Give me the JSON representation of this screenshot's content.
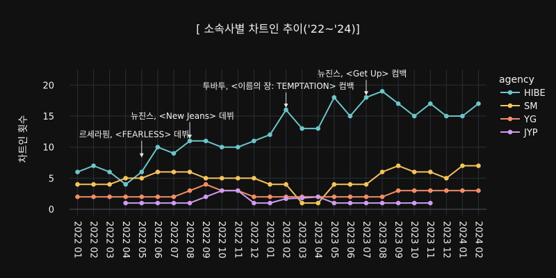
{
  "chart_data": {
    "type": "line",
    "title": "[ 소속사별 차트인 추이('22~'24)]",
    "xlabel": "",
    "ylabel": "차트인 횟수",
    "ylim": [
      -1,
      22.5
    ],
    "yticks": [
      0,
      5,
      10,
      15,
      20
    ],
    "grid": true,
    "legend_title": "agency",
    "legend_position": "right",
    "x": [
      "2022 01",
      "2022 02",
      "2022 03",
      "2022 04",
      "2022 05",
      "2022 06",
      "2022 07",
      "2022 08",
      "2022 09",
      "2022 10",
      "2022 11",
      "2022 12",
      "2023 01",
      "2023 02",
      "2023 03",
      "2023 04",
      "2023 05",
      "2023 06",
      "2023 07",
      "2023 08",
      "2023 09",
      "2023 10",
      "2023 11",
      "2023 12",
      "2024 01",
      "2024 02"
    ],
    "series": [
      {
        "name": "HIBE",
        "color": "#6cc5c9",
        "values": [
          6,
          7,
          6,
          4,
          6,
          10,
          9,
          11,
          11,
          10,
          10,
          11,
          12,
          16,
          13,
          13,
          18,
          15,
          18,
          19,
          17,
          15,
          17,
          15,
          15,
          17
        ]
      },
      {
        "name": "SM",
        "color": "#f5c45e",
        "values": [
          4,
          4,
          4,
          5,
          5,
          6,
          6,
          6,
          5,
          5,
          5,
          5,
          4,
          4,
          1,
          1,
          4,
          4,
          4,
          6,
          7,
          6,
          6,
          5,
          7,
          7
        ]
      },
      {
        "name": "YG",
        "color": "#f28e66",
        "values": [
          2,
          2,
          2,
          2,
          2,
          2,
          2,
          3,
          4,
          3,
          3,
          2,
          2,
          2,
          2,
          2,
          2,
          2,
          2,
          2,
          3,
          3,
          3,
          3,
          3,
          3
        ]
      },
      {
        "name": "JYP",
        "color": "#cf9cf0",
        "values": [
          null,
          null,
          null,
          1,
          1,
          1,
          1,
          1,
          2,
          3,
          3,
          1,
          1,
          1.7,
          1.8,
          2,
          1,
          1,
          1,
          1,
          1,
          1,
          1,
          null,
          null,
          null
        ]
      }
    ],
    "annotations": [
      {
        "text": "르세라핌, <FEARLESS> 데뷔",
        "x": "2022 05",
        "y": 8
      },
      {
        "text": "뉴진스, <New Jeans> 데뷔",
        "x": "2022 08",
        "y": 11
      },
      {
        "text": "투바투, <이름의 장: TEMPTATION> 컴백",
        "x": "2023 02",
        "y": 16
      },
      {
        "text": "뉴진스, <Get Up> 컴백",
        "x": "2023 07",
        "y": 18
      }
    ]
  }
}
